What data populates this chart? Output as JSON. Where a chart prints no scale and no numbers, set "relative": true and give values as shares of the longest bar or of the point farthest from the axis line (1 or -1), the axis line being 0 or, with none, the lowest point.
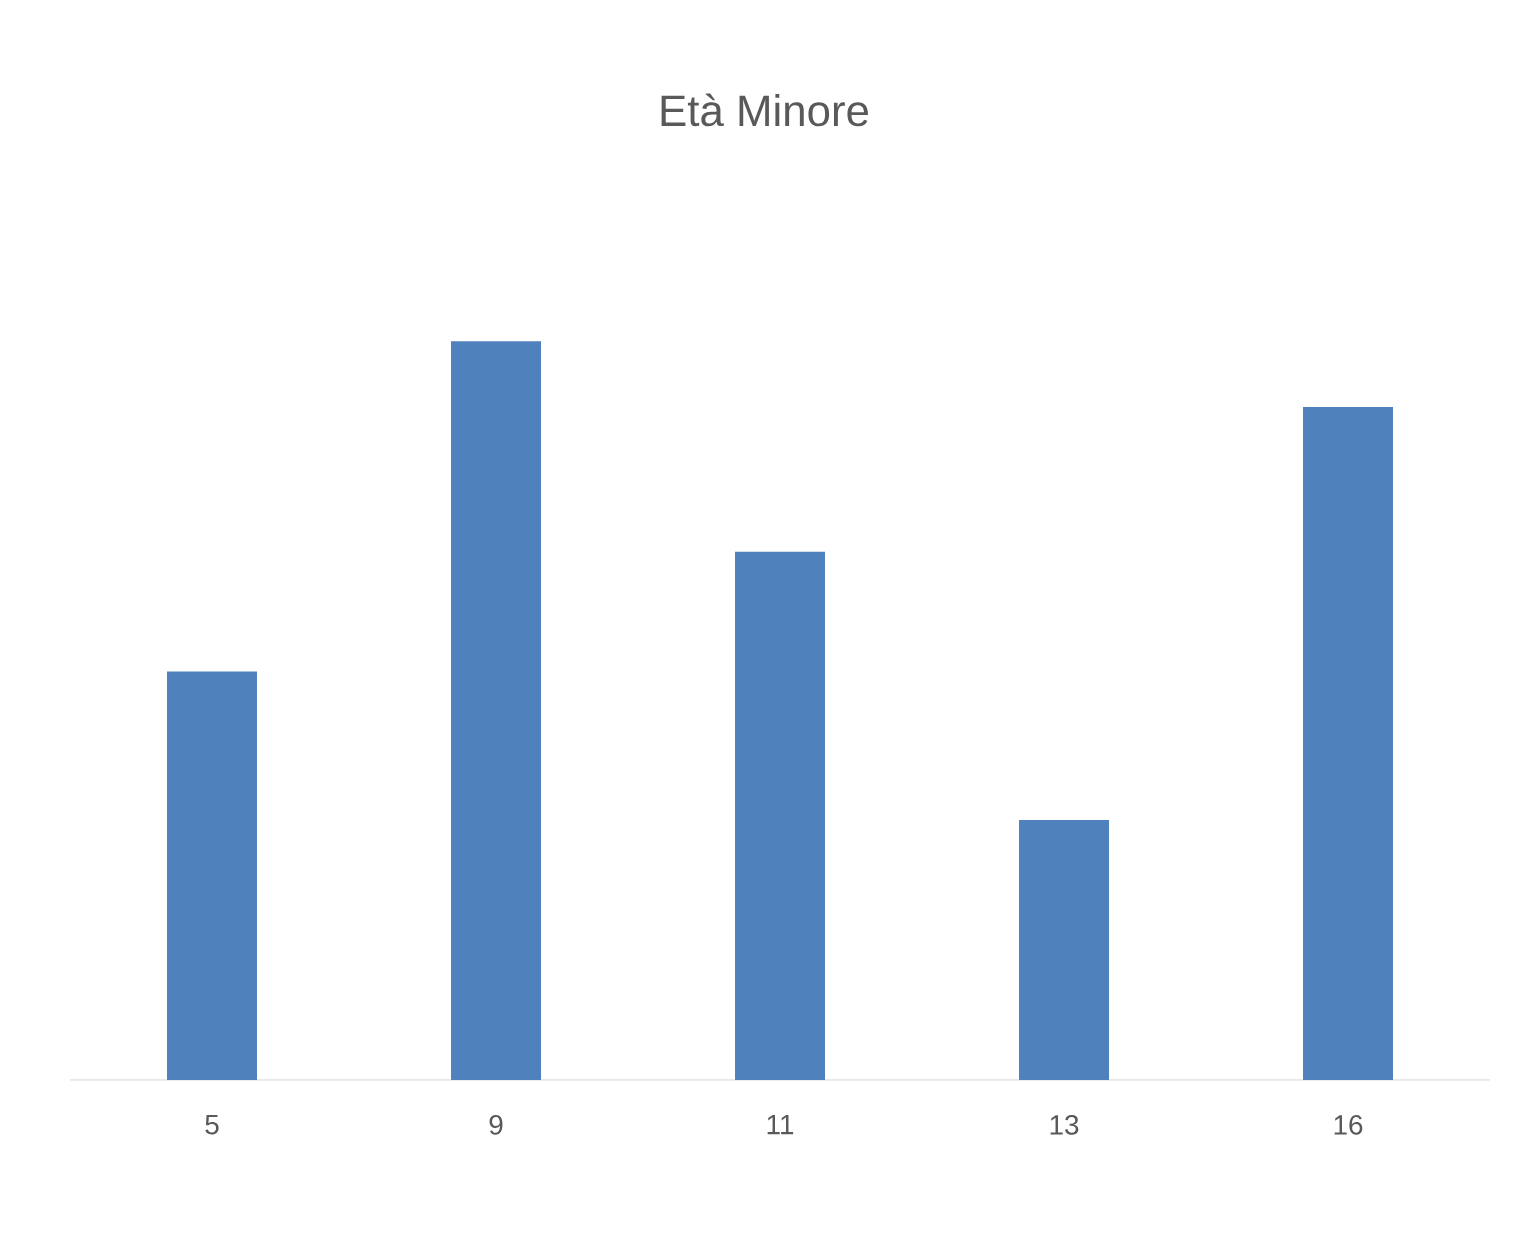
{
  "chart_data": {
    "type": "bar",
    "title": "Età Minore",
    "relative": true,
    "categories": [
      "5",
      "9",
      "11",
      "13",
      "16"
    ],
    "values": [
      0.553,
      1,
      0.715,
      0.352,
      0.911
    ],
    "color": "#4f81bd"
  }
}
